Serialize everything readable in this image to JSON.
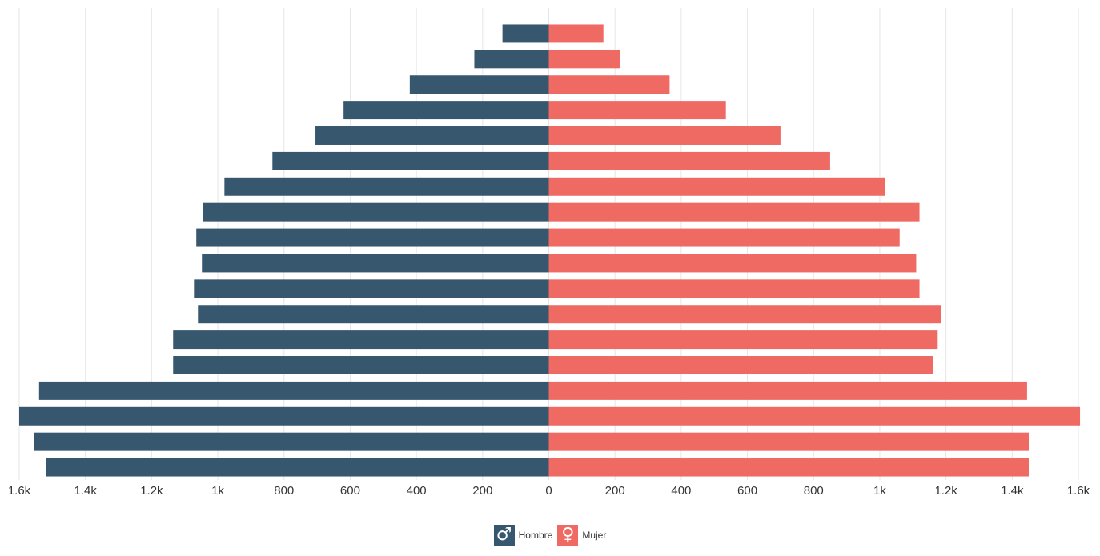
{
  "chart_data": {
    "type": "bar",
    "orientation": "horizontal",
    "layout": "population-pyramid",
    "xlim": [
      -1600,
      1600
    ],
    "x_ticks": [
      -1600,
      -1400,
      -1200,
      -1000,
      -800,
      -600,
      -400,
      -200,
      0,
      200,
      400,
      600,
      800,
      1000,
      1200,
      1400,
      1600
    ],
    "x_tick_labels": [
      "1.6k",
      "1.4k",
      "1.2k",
      "1k",
      "800",
      "600",
      "400",
      "200",
      "0",
      "200",
      "400",
      "600",
      "800",
      "1k",
      "1.2k",
      "1.4k",
      "1.6k"
    ],
    "grid": true,
    "legend_position": "bottom-center",
    "series": [
      {
        "name": "Hombre",
        "color": "#37576f",
        "icon": "male-icon",
        "side": "left",
        "values": [
          140,
          225,
          420,
          620,
          705,
          835,
          980,
          1045,
          1065,
          1048,
          1072,
          1060,
          1135,
          1135,
          1540,
          1600,
          1555,
          1520
        ]
      },
      {
        "name": "Mujer",
        "color": "#ee6a63",
        "icon": "female-icon",
        "side": "right",
        "values": [
          165,
          215,
          365,
          535,
          700,
          850,
          1015,
          1120,
          1060,
          1110,
          1120,
          1185,
          1175,
          1160,
          1445,
          1605,
          1450,
          1450
        ]
      }
    ]
  }
}
